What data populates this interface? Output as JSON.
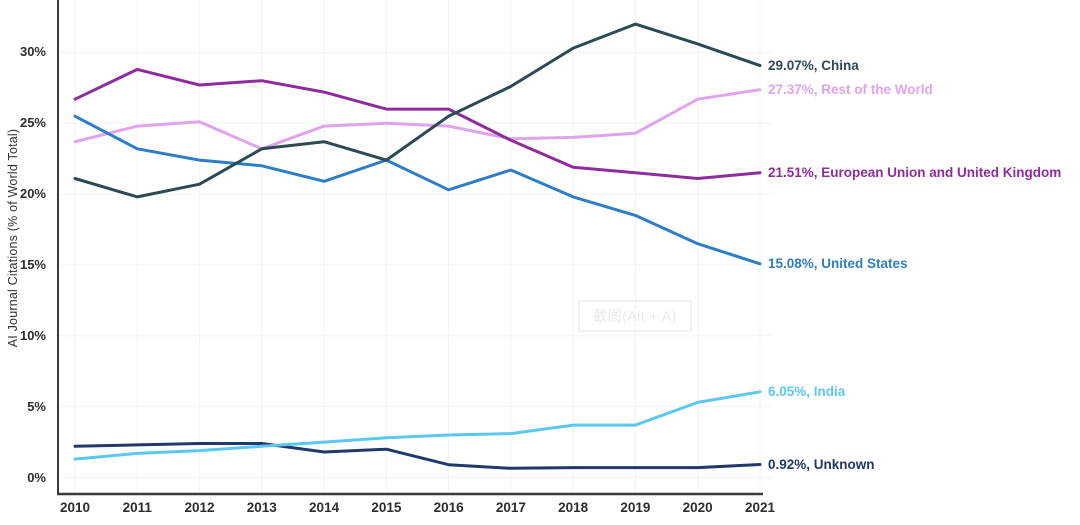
{
  "chart_data": {
    "type": "line",
    "title": "",
    "xlabel": "",
    "ylabel": "AI Journal Citations (% of World Total)",
    "x": [
      2010,
      2011,
      2012,
      2013,
      2014,
      2015,
      2016,
      2017,
      2018,
      2019,
      2020,
      2021
    ],
    "x_tick_labels": [
      "2010",
      "2011",
      "2012",
      "2013",
      "2014",
      "2015",
      "2016",
      "2017",
      "2018",
      "2019",
      "2020",
      "2021"
    ],
    "yticks": [
      0,
      5,
      10,
      15,
      20,
      25,
      30
    ],
    "ytick_labels": [
      "0%",
      "5%",
      "10%",
      "15%",
      "20%",
      "25%",
      "30%"
    ],
    "ylim": [
      0,
      33.7
    ],
    "grid": true,
    "legend_position": "right-end-labels",
    "series": [
      {
        "name": "China",
        "color": "#2b4a52",
        "end_label": "29.07%, China",
        "end_value": 29.07,
        "values": [
          21.1,
          19.8,
          20.7,
          23.2,
          23.7,
          22.4,
          25.5,
          27.6,
          30.3,
          32.0,
          30.6,
          29.07
        ]
      },
      {
        "name": "Rest of the World",
        "color": "#e0a3ee",
        "end_label": "27.37%, Rest of the World",
        "end_value": 27.37,
        "values": [
          23.7,
          24.8,
          25.1,
          23.2,
          24.8,
          25.0,
          24.8,
          23.9,
          24.0,
          24.3,
          26.7,
          27.37
        ]
      },
      {
        "name": "European Union and United Kingdom",
        "color": "#8e2c9e",
        "end_label": "21.51%, European Union and United Kingdom",
        "end_value": 21.51,
        "values": [
          26.7,
          28.8,
          27.7,
          28.0,
          27.2,
          26.0,
          26.0,
          23.8,
          21.9,
          21.5,
          21.1,
          21.51
        ]
      },
      {
        "name": "United States",
        "color": "#2e7ec5",
        "end_label": "15.08%, United States",
        "end_value": 15.08,
        "values": [
          25.5,
          23.2,
          22.4,
          22.0,
          20.9,
          22.4,
          20.3,
          21.7,
          19.8,
          18.5,
          16.5,
          15.08
        ]
      },
      {
        "name": "India",
        "color": "#5ac8f0",
        "end_label": "6.05%, India",
        "end_value": 6.05,
        "values": [
          1.3,
          1.7,
          1.9,
          2.2,
          2.5,
          2.8,
          3.0,
          3.1,
          3.7,
          3.7,
          5.3,
          6.05
        ]
      },
      {
        "name": "Unknown",
        "color": "#20396b",
        "end_label": "0.92%, Unknown",
        "end_value": 0.92,
        "values": [
          2.2,
          2.3,
          2.4,
          2.4,
          1.8,
          2.0,
          0.9,
          0.65,
          0.7,
          0.7,
          0.7,
          0.92
        ]
      }
    ]
  },
  "watermark": {
    "text": "截图(Alt + A)"
  },
  "colors": {
    "axis": "#3a3a3a",
    "grid": "#f3f3f5",
    "tick_text": "#2d2d2d",
    "background": "#ffffff"
  }
}
